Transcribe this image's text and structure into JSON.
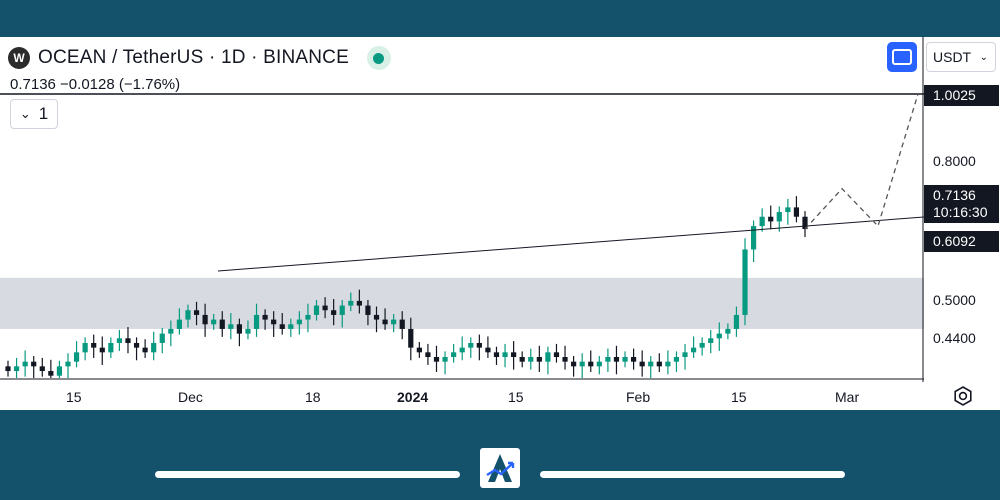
{
  "header": {
    "logo_letter": "W",
    "title": "OCEAN / TetherUS · 1D · BINANCE",
    "ohlc": "0.7136  −0.0128 (−1.76%)",
    "collapse_count": "1",
    "currency": "USDT"
  },
  "price_labels": {
    "target": "1.0025",
    "p080": "0.8000",
    "current": "0.7136",
    "countdown": "10:16:30",
    "zone_top": "0.6092",
    "p050": "0.5000",
    "p044": "0.4400"
  },
  "x_labels": [
    {
      "text": "15",
      "bold": false
    },
    {
      "text": "Dec",
      "bold": false
    },
    {
      "text": "18",
      "bold": false
    },
    {
      "text": "2024",
      "bold": true
    },
    {
      "text": "15",
      "bold": false
    },
    {
      "text": "Feb",
      "bold": false
    },
    {
      "text": "15",
      "bold": false
    },
    {
      "text": "Mar",
      "bold": false
    }
  ],
  "colors": {
    "up": "#089981",
    "down": "#131722",
    "zone": "#d1d4dc",
    "accent": "#2962ff",
    "frame": "#14526b"
  },
  "chart_data": {
    "type": "candlestick",
    "symbol": "OCEAN / TetherUS",
    "interval": "1D",
    "exchange": "BINANCE",
    "ylim": [
      0.39,
      1.03
    ],
    "x_ticks": [
      "15",
      "Dec",
      "18",
      "2024",
      "15",
      "Feb",
      "15",
      "Mar"
    ],
    "close_path": [
      0.41,
      0.42,
      0.43,
      0.42,
      0.41,
      0.4,
      0.42,
      0.43,
      0.45,
      0.47,
      0.46,
      0.45,
      0.47,
      0.48,
      0.47,
      0.46,
      0.45,
      0.47,
      0.49,
      0.5,
      0.52,
      0.54,
      0.53,
      0.51,
      0.52,
      0.5,
      0.51,
      0.49,
      0.5,
      0.53,
      0.52,
      0.51,
      0.5,
      0.51,
      0.52,
      0.53,
      0.55,
      0.54,
      0.53,
      0.55,
      0.56,
      0.55,
      0.53,
      0.52,
      0.51,
      0.52,
      0.5,
      0.46,
      0.45,
      0.44,
      0.43,
      0.44,
      0.45,
      0.46,
      0.47,
      0.46,
      0.45,
      0.44,
      0.45,
      0.44,
      0.43,
      0.44,
      0.43,
      0.45,
      0.44,
      0.43,
      0.42,
      0.43,
      0.42,
      0.43,
      0.44,
      0.43,
      0.44,
      0.43,
      0.42,
      0.43,
      0.42,
      0.43,
      0.44,
      0.45,
      0.46,
      0.47,
      0.48,
      0.49,
      0.5,
      0.53,
      0.67,
      0.72,
      0.74,
      0.73,
      0.75,
      0.76,
      0.74,
      0.7136
    ],
    "zone": [
      0.5,
      0.6092
    ],
    "trendline": {
      "from": 0.56,
      "to": 0.62
    },
    "projection": [
      0.7136,
      0.8,
      0.72,
      1.0025
    ],
    "last_price": 0.7136,
    "change": -0.0128,
    "change_pct": -1.76
  }
}
